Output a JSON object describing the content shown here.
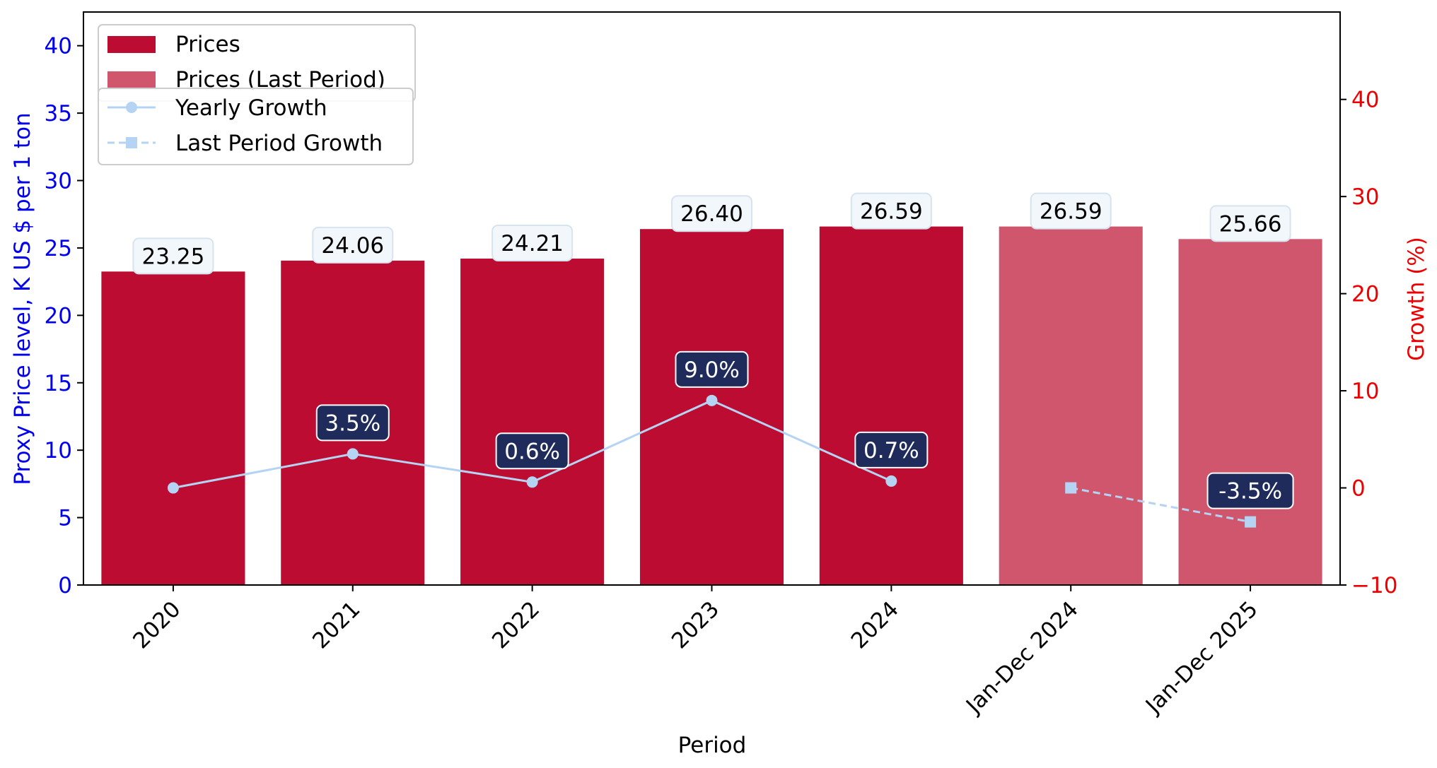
{
  "chart_data": {
    "type": "bar",
    "xlabel": "Period",
    "ylabel_left": "Proxy Price level, K US $ per 1 ton",
    "ylabel_right": "Growth (%)",
    "categories": [
      "2020",
      "2021",
      "2022",
      "2023",
      "2024",
      "Jan-Dec 2024",
      "Jan-Dec 2025"
    ],
    "y_left_lim": [
      0,
      42.5
    ],
    "y_right_lim": [
      -10,
      49
    ],
    "y_left_ticks": [
      0,
      5,
      10,
      15,
      20,
      25,
      30,
      35,
      40
    ],
    "y_right_ticks": [
      -10,
      0,
      10,
      20,
      30,
      40
    ],
    "bars": {
      "prices": {
        "name": "Prices",
        "color": "#bc0c32",
        "values": [
          23.25,
          24.06,
          24.21,
          26.4,
          26.59,
          null,
          null
        ],
        "labels": [
          "23.25",
          "24.06",
          "24.21",
          "26.40",
          "26.59",
          "",
          ""
        ]
      },
      "prices_last": {
        "name": "Prices (Last Period)",
        "color": "#d0566d",
        "values": [
          null,
          null,
          null,
          null,
          null,
          26.59,
          25.66
        ],
        "labels": [
          "",
          "",
          "",
          "",
          "",
          "26.59",
          "25.66"
        ]
      }
    },
    "lines": {
      "yearly": {
        "name": "Yearly Growth",
        "color": "#b5d3f2",
        "values": [
          0,
          3.5,
          0.6,
          9.0,
          0.7,
          null,
          null
        ],
        "labels": [
          "",
          "3.5%",
          "0.6%",
          "9.0%",
          "0.7%",
          "",
          ""
        ]
      },
      "last": {
        "name": "Last Period Growth",
        "color": "#b5d3f2",
        "values": [
          null,
          null,
          null,
          null,
          null,
          0,
          -3.5
        ],
        "labels": [
          "",
          "",
          "",
          "",
          "",
          "",
          "-3.5%"
        ]
      }
    },
    "legend_position": "top-left",
    "grid": false
  }
}
